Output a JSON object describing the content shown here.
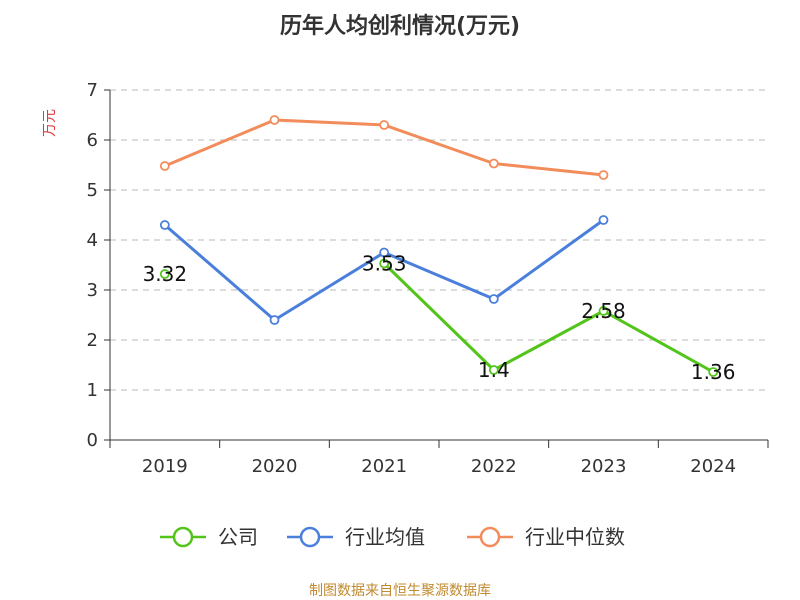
{
  "chart_data": {
    "type": "line",
    "title": "历年人均创利情况(万元)",
    "ylabel": "万元",
    "xlabel": "",
    "categories": [
      "2019",
      "2020",
      "2021",
      "2022",
      "2023",
      "2024"
    ],
    "ylim": [
      0,
      7
    ],
    "yticks": [
      0,
      1,
      2,
      3,
      4,
      5,
      6,
      7
    ],
    "grid": "horizontal dashed",
    "legend_position": "bottom",
    "series": [
      {
        "name": "公司",
        "color": "#52c41a",
        "values": [
          3.32,
          null,
          3.53,
          1.4,
          2.58,
          1.36
        ],
        "labels": [
          "3.32",
          null,
          "3.53",
          "1.4",
          "2.58",
          "1.36"
        ]
      },
      {
        "name": "行业均值",
        "color": "#4a7fdc",
        "values": [
          4.3,
          2.4,
          3.75,
          2.82,
          4.4,
          null
        ]
      },
      {
        "name": "行业中位数",
        "color": "#f28c5a",
        "values": [
          5.48,
          6.4,
          6.3,
          5.53,
          5.3,
          null
        ]
      }
    ]
  },
  "footer": "制图数据来自恒生聚源数据库"
}
